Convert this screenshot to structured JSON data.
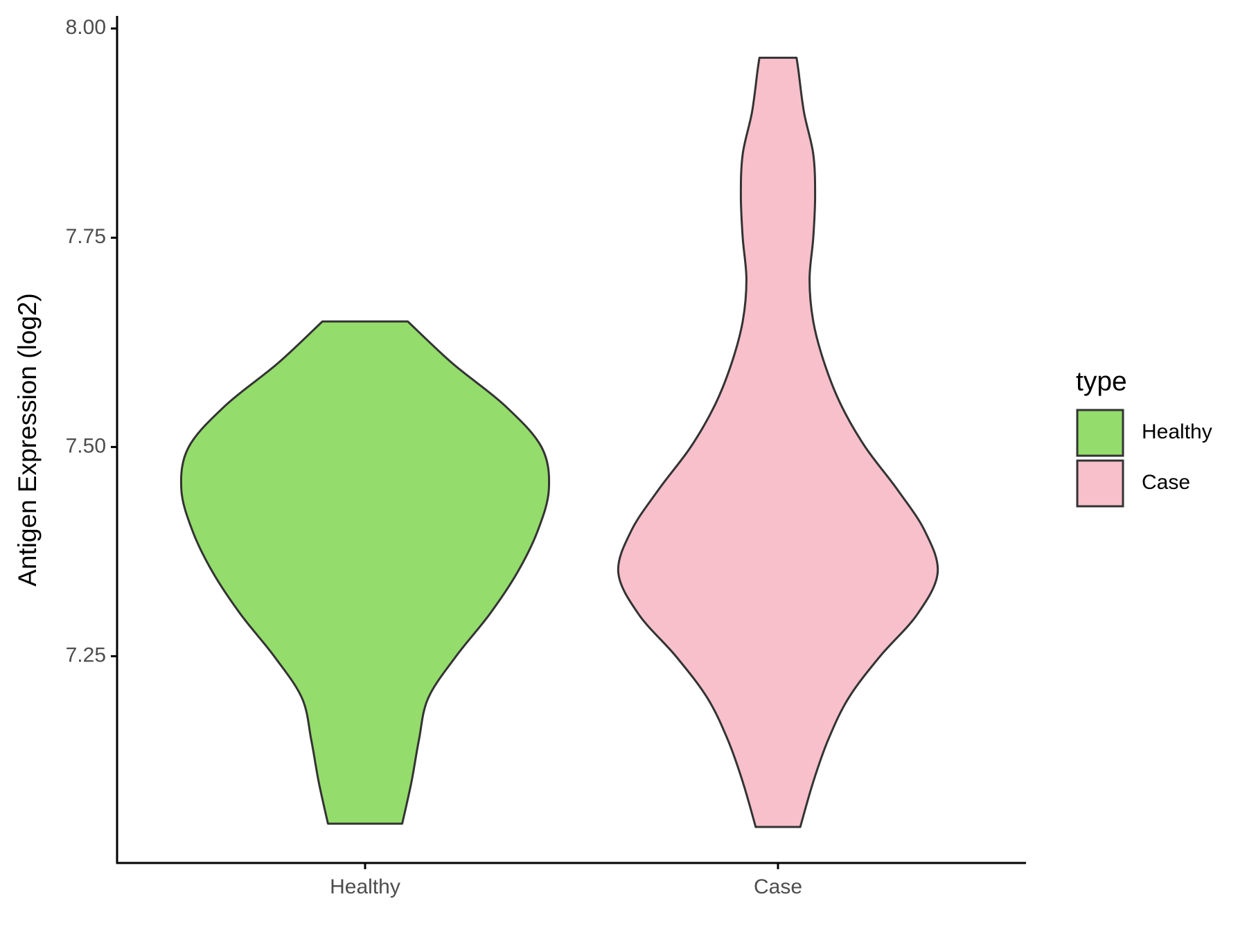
{
  "chart_data": {
    "type": "violin",
    "y_label": "Antigen Expression (log2)",
    "categories": [
      "Healthy",
      "Case"
    ],
    "legend": {
      "title": "type",
      "position": "right"
    },
    "series": [
      {
        "name": "Healthy",
        "color": "#94dc6b",
        "y": [
          7.05,
          7.1,
          7.15,
          7.2,
          7.25,
          7.3,
          7.35,
          7.4,
          7.45,
          7.5,
          7.55,
          7.6,
          7.65
        ],
        "density": [
          0.2,
          0.25,
          0.29,
          0.34,
          0.49,
          0.67,
          0.82,
          0.93,
          0.99,
          0.95,
          0.75,
          0.47,
          0.23
        ]
      },
      {
        "name": "Case",
        "color": "#f7c0cb",
        "y": [
          7.046,
          7.1,
          7.15,
          7.2,
          7.25,
          7.3,
          7.35,
          7.4,
          7.45,
          7.5,
          7.55,
          7.6,
          7.65,
          7.7,
          7.75,
          7.8,
          7.85,
          7.9,
          7.95,
          7.965
        ],
        "density": [
          0.12,
          0.19,
          0.27,
          0.38,
          0.55,
          0.75,
          0.86,
          0.79,
          0.64,
          0.47,
          0.34,
          0.25,
          0.19,
          0.17,
          0.19,
          0.2,
          0.19,
          0.14,
          0.11,
          0.1
        ]
      }
    ],
    "ylim": [
      7.003,
      8.015
    ],
    "yticks": [
      {
        "value": 7.25,
        "label": "7.25"
      },
      {
        "value": 7.5,
        "label": "7.50"
      },
      {
        "value": 7.75,
        "label": "7.75"
      },
      {
        "value": 8,
        "label": "8.00"
      }
    ],
    "grid": false
  }
}
